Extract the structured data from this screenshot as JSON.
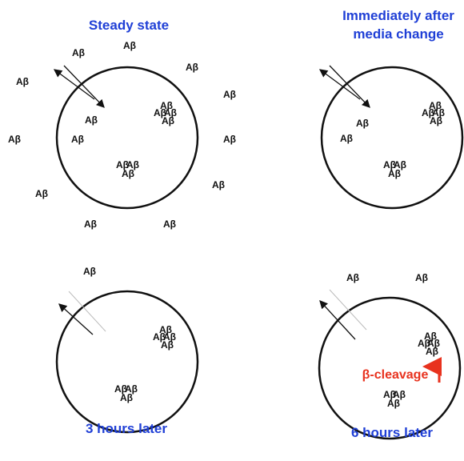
{
  "panels": [
    {
      "title": [
        "Steady state"
      ],
      "labels": [
        "Aβ",
        "Aβ",
        "Aβ",
        "Aβ",
        "Aβ",
        "Aβ",
        "Aβ",
        "Aβ",
        "Aβ",
        "Aβ",
        "Aβ",
        "Aβ",
        "Aβ",
        "Aβ",
        "Aβ",
        "Aβ",
        "Aβ",
        "Aβ",
        "Aβ",
        "Aβ"
      ]
    },
    {
      "title": [
        "Immediately after",
        "media change"
      ],
      "labels": [
        "Aβ",
        "Aβ",
        "Aβ",
        "Aβ",
        "Aβ",
        "Aβ",
        "Aβ",
        "Aβ",
        "Aβ"
      ]
    },
    {
      "title": [
        "3 hours later"
      ],
      "labels": [
        "Aβ",
        "Aβ",
        "Aβ",
        "Aβ",
        "Aβ",
        "Aβ",
        "Aβ",
        "Aβ"
      ]
    },
    {
      "title": [
        "6 hours later"
      ],
      "labels": [
        "Aβ",
        "Aβ",
        "Aβ",
        "Aβ",
        "Aβ",
        "Aβ",
        "Aβ",
        "Aβ",
        "Aβ"
      ],
      "annotation": "β-cleavage"
    }
  ]
}
